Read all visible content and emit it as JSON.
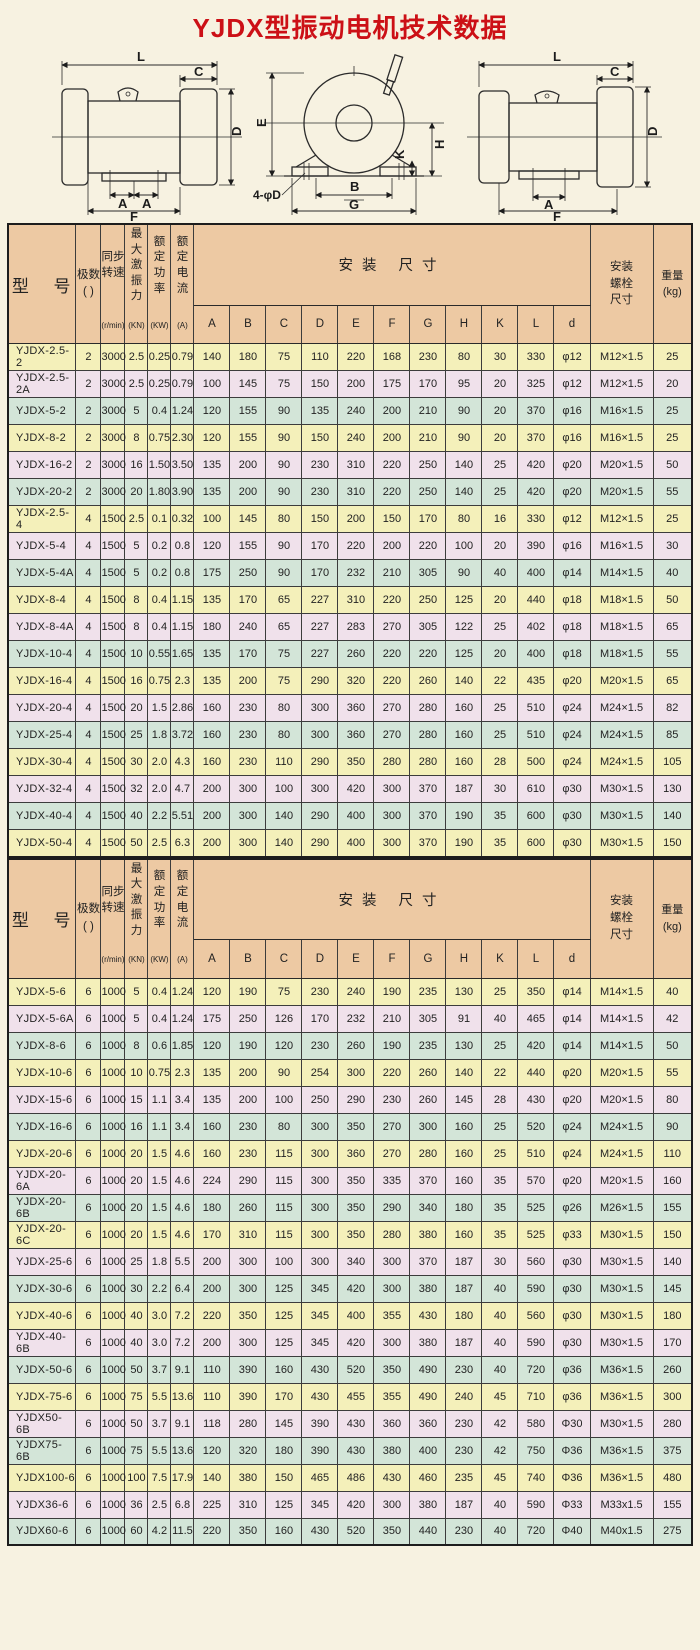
{
  "page": {
    "title": "YJDX型振动电机技术数据"
  },
  "colors": {
    "page_bg": "#f7f2e1",
    "header_bg": "#edc9a3",
    "row_yellow": "#f4f0ba",
    "row_pink": "#f0e1eb",
    "row_green": "#d3e5d8",
    "title_red": "#cc1016"
  },
  "diagram_labels": {
    "left": {
      "L": "L",
      "C": "C",
      "D": "D",
      "A1": "A",
      "A2": "A",
      "F": "F"
    },
    "front": {
      "E": "E",
      "K": "K",
      "H": "H",
      "B": "B",
      "G": "G",
      "hole": "4-φD"
    },
    "right": {
      "L": "L",
      "C": "C",
      "D": "D",
      "A": "A",
      "F": "F"
    }
  },
  "header": {
    "model": "型 号",
    "poles": "极数\n(  )",
    "speed": "同步\n转速",
    "speed_unit": "(r/min)",
    "force": "最大\n激振\n力",
    "force_unit": "(KN)",
    "power": "额定\n功率",
    "power_unit": "(KW)",
    "current": "额定\n电流",
    "current_unit": "(A)",
    "install": "安装 尺寸",
    "dims": [
      "A",
      "B",
      "C",
      "D",
      "E",
      "F",
      "G",
      "H",
      "K",
      "L",
      "d"
    ],
    "bolt": "安装\n螺栓\n尺寸",
    "weight": "重量\n(kg)"
  },
  "table1": {
    "rows": [
      [
        "YJDX-2.5-2",
        "2",
        "3000",
        "2.5",
        "0.25",
        "0.79",
        "140",
        "180",
        "75",
        "110",
        "220",
        "168",
        "230",
        "80",
        "30",
        "330",
        "φ12",
        "M12×1.5",
        "25"
      ],
      [
        "YJDX-2.5-2A",
        "2",
        "3000",
        "2.5",
        "0.25",
        "0.79",
        "100",
        "145",
        "75",
        "150",
        "200",
        "175",
        "170",
        "95",
        "20",
        "325",
        "φ12",
        "M12×1.5",
        "20"
      ],
      [
        "YJDX-5-2",
        "2",
        "3000",
        "5",
        "0.4",
        "1.24",
        "120",
        "155",
        "90",
        "135",
        "240",
        "200",
        "210",
        "90",
        "20",
        "370",
        "φ16",
        "M16×1.5",
        "25"
      ],
      [
        "YJDX-8-2",
        "2",
        "3000",
        "8",
        "0.75",
        "2.30",
        "120",
        "155",
        "90",
        "150",
        "240",
        "200",
        "210",
        "90",
        "20",
        "370",
        "φ16",
        "M16×1.5",
        "25"
      ],
      [
        "YJDX-16-2",
        "2",
        "3000",
        "16",
        "1.50",
        "3.50",
        "135",
        "200",
        "90",
        "230",
        "310",
        "220",
        "250",
        "140",
        "25",
        "420",
        "φ20",
        "M20×1.5",
        "50"
      ],
      [
        "YJDX-20-2",
        "2",
        "3000",
        "20",
        "1.80",
        "3.90",
        "135",
        "200",
        "90",
        "230",
        "310",
        "220",
        "250",
        "140",
        "25",
        "420",
        "φ20",
        "M20×1.5",
        "55"
      ],
      [
        "YJDX-2.5-4",
        "4",
        "1500",
        "2.5",
        "0.1",
        "0.32",
        "100",
        "145",
        "80",
        "150",
        "200",
        "150",
        "170",
        "80",
        "16",
        "330",
        "φ12",
        "M12×1.5",
        "25"
      ],
      [
        "YJDX-5-4",
        "4",
        "1500",
        "5",
        "0.2",
        "0.8",
        "120",
        "155",
        "90",
        "170",
        "220",
        "200",
        "220",
        "100",
        "20",
        "390",
        "φ16",
        "M16×1.5",
        "30"
      ],
      [
        "YJDX-5-4A",
        "4",
        "1500",
        "5",
        "0.2",
        "0.8",
        "175",
        "250",
        "90",
        "170",
        "232",
        "210",
        "305",
        "90",
        "40",
        "400",
        "φ14",
        "M14×1.5",
        "40"
      ],
      [
        "YJDX-8-4",
        "4",
        "1500",
        "8",
        "0.4",
        "1.15",
        "135",
        "170",
        "65",
        "227",
        "310",
        "220",
        "250",
        "125",
        "20",
        "440",
        "φ18",
        "M18×1.5",
        "50"
      ],
      [
        "YJDX-8-4A",
        "4",
        "1500",
        "8",
        "0.4",
        "1.15",
        "180",
        "240",
        "65",
        "227",
        "283",
        "270",
        "305",
        "122",
        "25",
        "402",
        "φ18",
        "M18×1.5",
        "65"
      ],
      [
        "YJDX-10-4",
        "4",
        "1500",
        "10",
        "0.55",
        "1.65",
        "135",
        "170",
        "75",
        "227",
        "260",
        "220",
        "220",
        "125",
        "20",
        "400",
        "φ18",
        "M18×1.5",
        "55"
      ],
      [
        "YJDX-16-4",
        "4",
        "1500",
        "16",
        "0.75",
        "2.3",
        "135",
        "200",
        "75",
        "290",
        "320",
        "220",
        "260",
        "140",
        "22",
        "435",
        "φ20",
        "M20×1.5",
        "65"
      ],
      [
        "YJDX-20-4",
        "4",
        "1500",
        "20",
        "1.5",
        "2.86",
        "160",
        "230",
        "80",
        "300",
        "360",
        "270",
        "280",
        "160",
        "25",
        "510",
        "φ24",
        "M24×1.5",
        "82"
      ],
      [
        "YJDX-25-4",
        "4",
        "1500",
        "25",
        "1.8",
        "3.72",
        "160",
        "230",
        "80",
        "300",
        "360",
        "270",
        "280",
        "160",
        "25",
        "510",
        "φ24",
        "M24×1.5",
        "85"
      ],
      [
        "YJDX-30-4",
        "4",
        "1500",
        "30",
        "2.0",
        "4.3",
        "160",
        "230",
        "110",
        "290",
        "350",
        "280",
        "280",
        "160",
        "28",
        "500",
        "φ24",
        "M24×1.5",
        "105"
      ],
      [
        "YJDX-32-4",
        "4",
        "1500",
        "32",
        "2.0",
        "4.7",
        "200",
        "300",
        "100",
        "300",
        "420",
        "300",
        "370",
        "187",
        "30",
        "610",
        "φ30",
        "M30×1.5",
        "130"
      ],
      [
        "YJDX-40-4",
        "4",
        "1500",
        "40",
        "2.2",
        "5.51",
        "200",
        "300",
        "140",
        "290",
        "400",
        "300",
        "370",
        "190",
        "35",
        "600",
        "φ30",
        "M30×1.5",
        "140"
      ],
      [
        "YJDX-50-4",
        "4",
        "1500",
        "50",
        "2.5",
        "6.3",
        "200",
        "300",
        "140",
        "290",
        "400",
        "300",
        "370",
        "190",
        "35",
        "600",
        "φ30",
        "M30×1.5",
        "150"
      ]
    ]
  },
  "table2": {
    "rows": [
      [
        "YJDX-5-6",
        "6",
        "1000",
        "5",
        "0.4",
        "1.24",
        "120",
        "190",
        "75",
        "230",
        "240",
        "190",
        "235",
        "130",
        "25",
        "350",
        "φ14",
        "M14×1.5",
        "40"
      ],
      [
        "YJDX-5-6A",
        "6",
        "1000",
        "5",
        "0.4",
        "1.24",
        "175",
        "250",
        "126",
        "170",
        "232",
        "210",
        "305",
        "91",
        "40",
        "465",
        "φ14",
        "M14×1.5",
        "42"
      ],
      [
        "YJDX-8-6",
        "6",
        "1000",
        "8",
        "0.6",
        "1.85",
        "120",
        "190",
        "120",
        "230",
        "260",
        "190",
        "235",
        "130",
        "25",
        "420",
        "φ14",
        "M14×1.5",
        "50"
      ],
      [
        "YJDX-10-6",
        "6",
        "1000",
        "10",
        "0.75",
        "2.3",
        "135",
        "200",
        "90",
        "254",
        "300",
        "220",
        "260",
        "140",
        "22",
        "440",
        "φ20",
        "M20×1.5",
        "55"
      ],
      [
        "YJDX-15-6",
        "6",
        "1000",
        "15",
        "1.1",
        "3.4",
        "135",
        "200",
        "100",
        "250",
        "290",
        "230",
        "260",
        "145",
        "28",
        "430",
        "φ20",
        "M20×1.5",
        "80"
      ],
      [
        "YJDX-16-6",
        "6",
        "1000",
        "16",
        "1.1",
        "3.4",
        "160",
        "230",
        "80",
        "300",
        "350",
        "270",
        "300",
        "160",
        "25",
        "520",
        "φ24",
        "M24×1.5",
        "90"
      ],
      [
        "YJDX-20-6",
        "6",
        "1000",
        "20",
        "1.5",
        "4.6",
        "160",
        "230",
        "115",
        "300",
        "360",
        "270",
        "280",
        "160",
        "25",
        "510",
        "φ24",
        "M24×1.5",
        "110"
      ],
      [
        "YJDX-20-6A",
        "6",
        "1000",
        "20",
        "1.5",
        "4.6",
        "224",
        "290",
        "115",
        "300",
        "350",
        "335",
        "370",
        "160",
        "35",
        "570",
        "φ20",
        "M20×1.5",
        "160"
      ],
      [
        "YJDX-20-6B",
        "6",
        "1000",
        "20",
        "1.5",
        "4.6",
        "180",
        "260",
        "115",
        "300",
        "350",
        "290",
        "340",
        "180",
        "35",
        "525",
        "φ26",
        "M26×1.5",
        "155"
      ],
      [
        "YJDX-20-6C",
        "6",
        "1000",
        "20",
        "1.5",
        "4.6",
        "170",
        "310",
        "115",
        "300",
        "350",
        "280",
        "380",
        "160",
        "35",
        "525",
        "φ33",
        "M30×1.5",
        "150"
      ],
      [
        "YJDX-25-6",
        "6",
        "1000",
        "25",
        "1.8",
        "5.5",
        "200",
        "300",
        "100",
        "300",
        "340",
        "300",
        "370",
        "187",
        "30",
        "560",
        "φ30",
        "M30×1.5",
        "140"
      ],
      [
        "YJDX-30-6",
        "6",
        "1000",
        "30",
        "2.2",
        "6.4",
        "200",
        "300",
        "125",
        "345",
        "420",
        "300",
        "380",
        "187",
        "40",
        "590",
        "φ30",
        "M30×1.5",
        "145"
      ],
      [
        "YJDX-40-6",
        "6",
        "1000",
        "40",
        "3.0",
        "7.2",
        "220",
        "350",
        "125",
        "345",
        "400",
        "355",
        "430",
        "180",
        "40",
        "560",
        "φ30",
        "M30×1.5",
        "180"
      ],
      [
        "YJDX-40-6B",
        "6",
        "1000",
        "40",
        "3.0",
        "7.2",
        "200",
        "300",
        "125",
        "345",
        "420",
        "300",
        "380",
        "187",
        "40",
        "590",
        "φ30",
        "M30×1.5",
        "170"
      ],
      [
        "YJDX-50-6",
        "6",
        "1000",
        "50",
        "3.7",
        "9.1",
        "110",
        "390",
        "160",
        "430",
        "520",
        "350",
        "490",
        "230",
        "40",
        "720",
        "φ36",
        "M36×1.5",
        "260"
      ],
      [
        "YJDX-75-6",
        "6",
        "1000",
        "75",
        "5.5",
        "13.6",
        "110",
        "390",
        "170",
        "430",
        "455",
        "355",
        "490",
        "240",
        "45",
        "710",
        "φ36",
        "M36×1.5",
        "300"
      ],
      [
        "YJDX50-6B",
        "6",
        "1000",
        "50",
        "3.7",
        "9.1",
        "118",
        "280",
        "145",
        "390",
        "430",
        "360",
        "360",
        "230",
        "42",
        "580",
        "Φ30",
        "M30×1.5",
        "280"
      ],
      [
        "YJDX75-6B",
        "6",
        "1000",
        "75",
        "5.5",
        "13.6",
        "120",
        "320",
        "180",
        "390",
        "430",
        "380",
        "400",
        "230",
        "42",
        "750",
        "Φ36",
        "M36×1.5",
        "375"
      ],
      [
        "YJDX100-6",
        "6",
        "1000",
        "100",
        "7.5",
        "17.9",
        "140",
        "380",
        "150",
        "465",
        "486",
        "430",
        "460",
        "235",
        "45",
        "740",
        "Φ36",
        "M36×1.5",
        "480"
      ],
      [
        "YJDX36-6",
        "6",
        "1000",
        "36",
        "2.5",
        "6.8",
        "225",
        "310",
        "125",
        "345",
        "420",
        "300",
        "380",
        "187",
        "40",
        "590",
        "Φ33",
        "M33x1.5",
        "155"
      ],
      [
        "YJDX60-6",
        "6",
        "1000",
        "60",
        "4.2",
        "11.5",
        "220",
        "350",
        "160",
        "430",
        "520",
        "350",
        "440",
        "230",
        "40",
        "720",
        "Φ40",
        "M40x1.5",
        "275"
      ]
    ]
  }
}
